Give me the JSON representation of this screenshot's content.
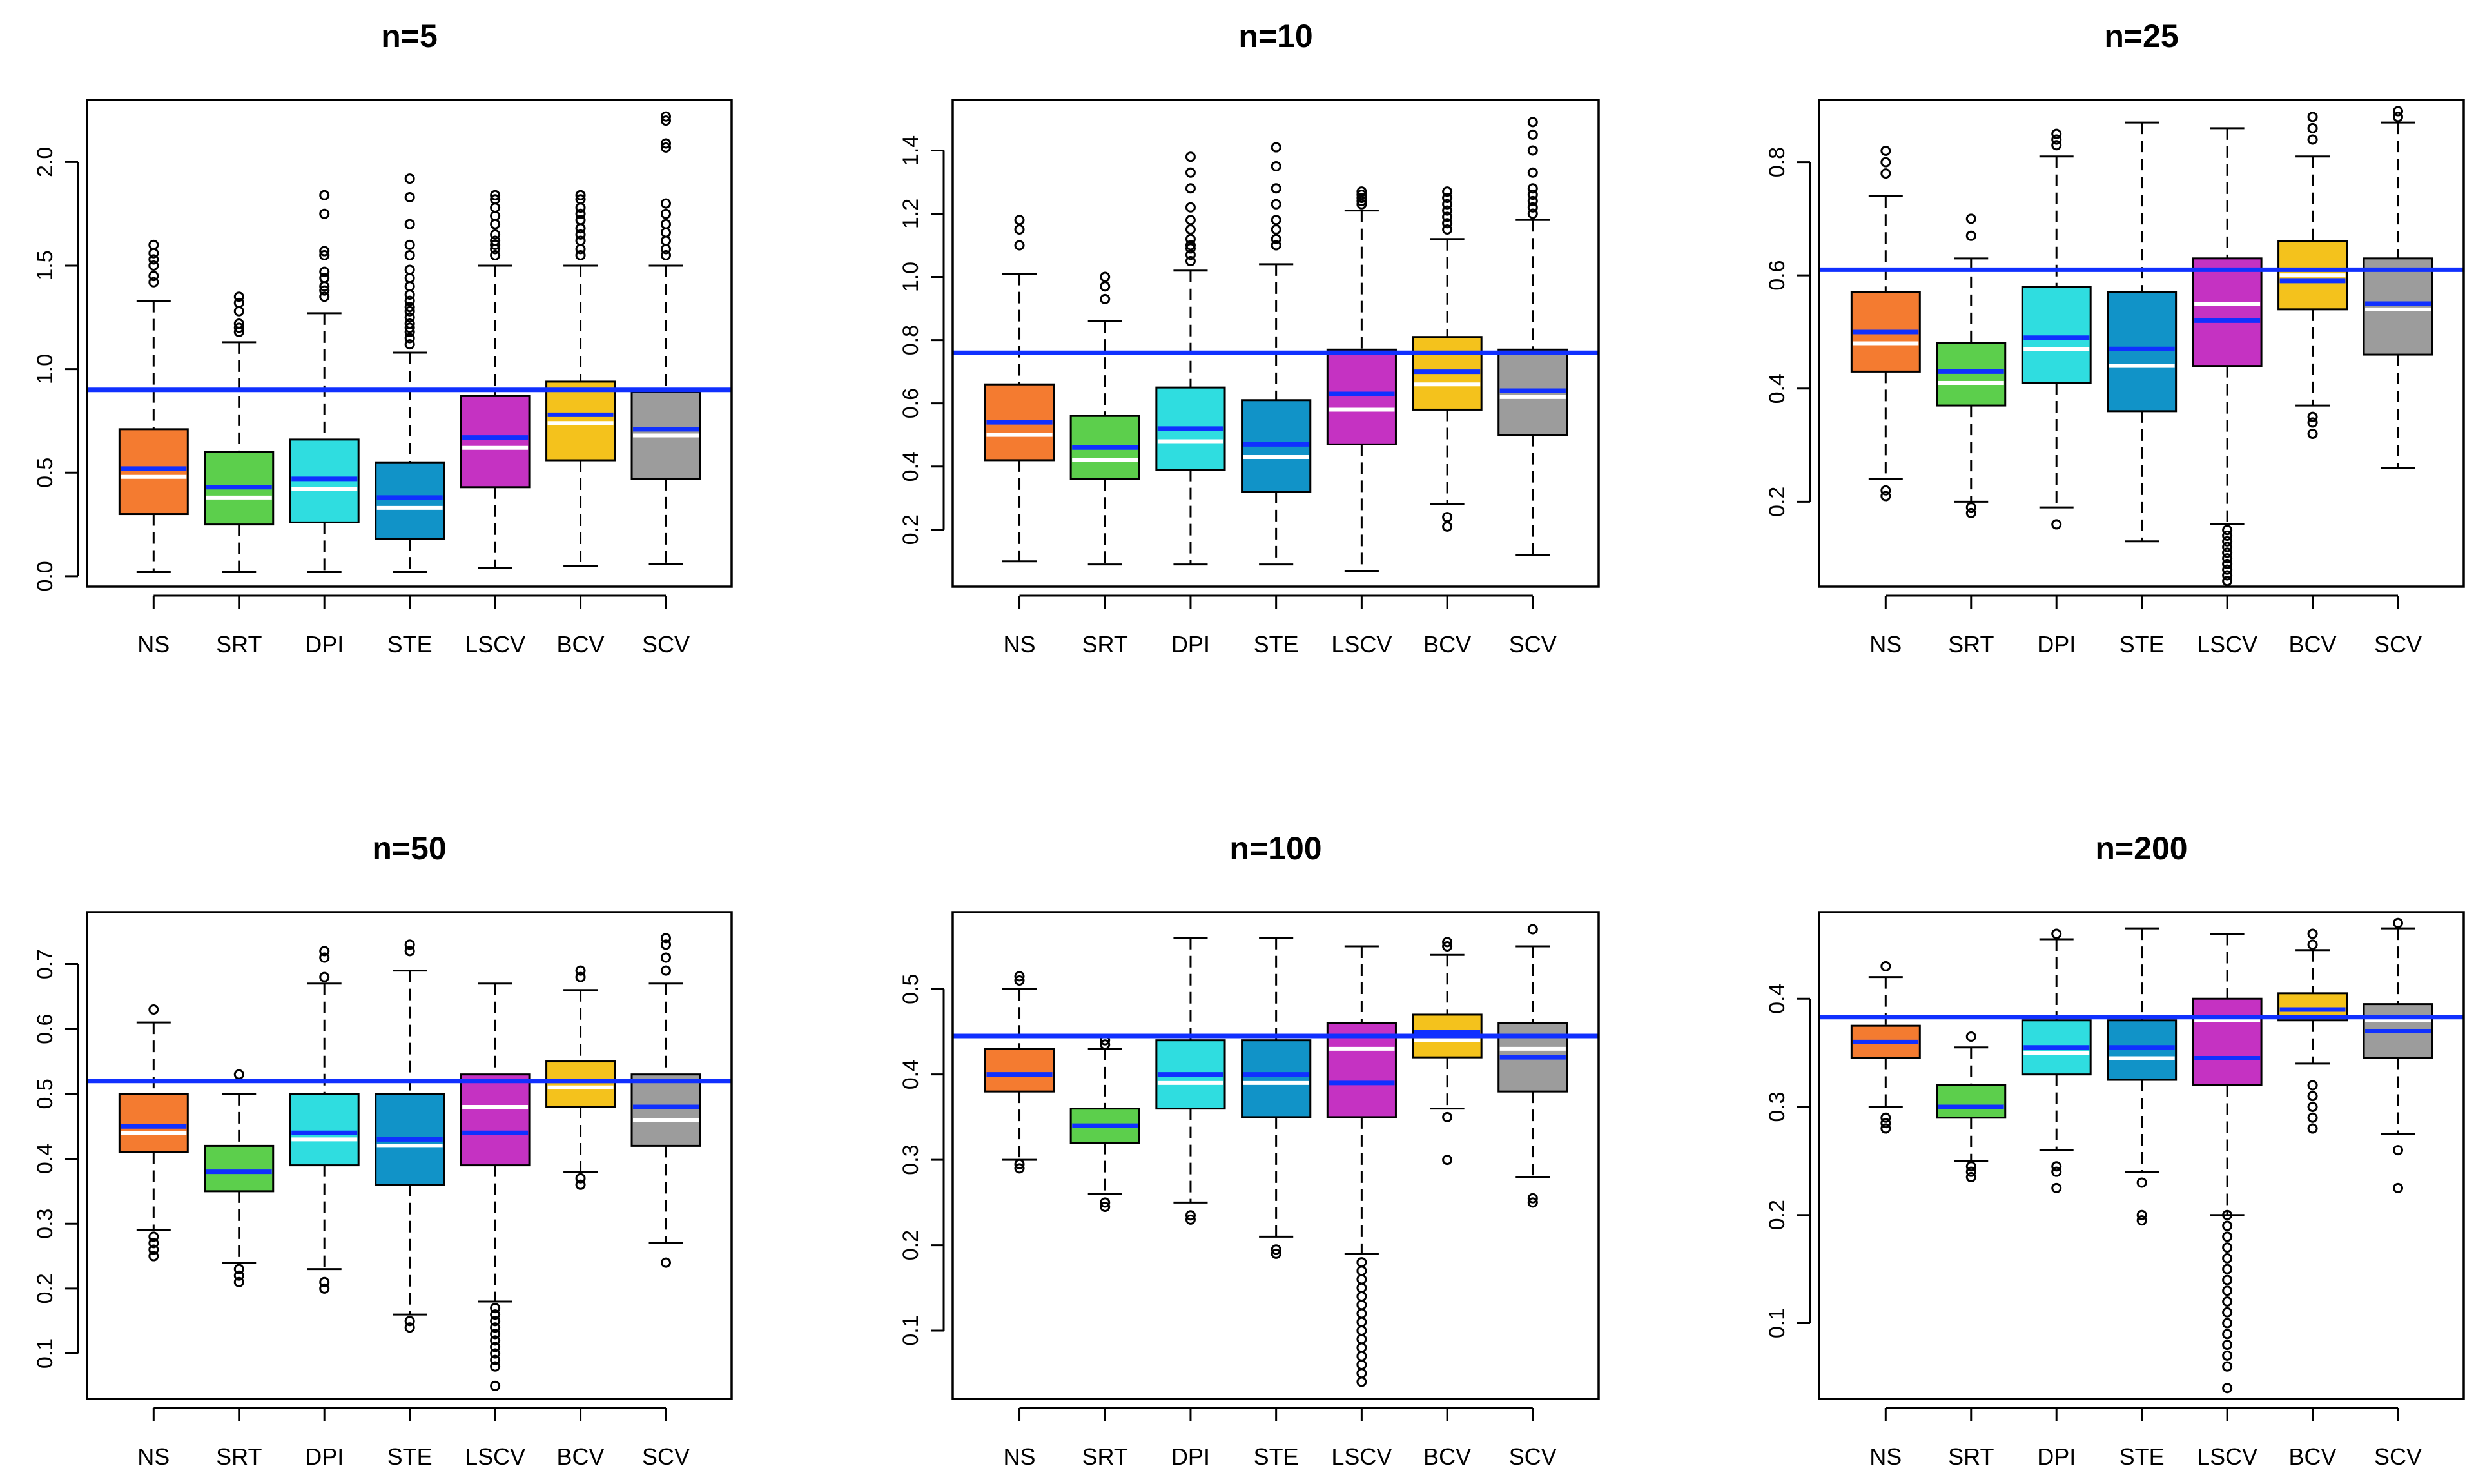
{
  "colors": {
    "NS": "#f47b30",
    "SRT": "#5ccf4c",
    "DPI": "#2fdde0",
    "STE": "#1193c8",
    "LSCV": "#c532c2",
    "BCV": "#f4c21c",
    "SCV": "#9c9c9c",
    "reference": "#1030ff",
    "mean_line": "#1030ff",
    "median_line": "#ffffff"
  },
  "chart_data": [
    {
      "type": "boxplot",
      "title": "n=5",
      "categories": [
        "NS",
        "SRT",
        "DPI",
        "STE",
        "LSCV",
        "BCV",
        "SCV"
      ],
      "ylim": [
        -0.05,
        2.3
      ],
      "yticks": [
        0.0,
        0.5,
        1.0,
        1.5,
        2.0
      ],
      "ytick_labels": [
        "0.0",
        "0.5",
        "1.0",
        "1.5",
        "2.0"
      ],
      "reference": 0.9,
      "boxes": [
        {
          "lw": 0.02,
          "q1": 0.3,
          "median": 0.48,
          "mean": 0.52,
          "q3": 0.71,
          "uw": 1.33,
          "outliers": [
            1.42,
            1.45,
            1.5,
            1.53,
            1.56,
            1.6
          ]
        },
        {
          "lw": 0.02,
          "q1": 0.25,
          "median": 0.38,
          "mean": 0.43,
          "q3": 0.6,
          "uw": 1.13,
          "outliers": [
            1.18,
            1.2,
            1.22,
            1.28,
            1.32,
            1.35
          ]
        },
        {
          "lw": 0.02,
          "q1": 0.26,
          "median": 0.42,
          "mean": 0.47,
          "q3": 0.66,
          "uw": 1.27,
          "outliers": [
            1.35,
            1.38,
            1.4,
            1.44,
            1.47,
            1.55,
            1.57,
            1.75,
            1.84
          ]
        },
        {
          "lw": 0.02,
          "q1": 0.18,
          "median": 0.33,
          "mean": 0.38,
          "q3": 0.55,
          "uw": 1.08,
          "outliers": [
            1.12,
            1.15,
            1.18,
            1.2,
            1.22,
            1.25,
            1.28,
            1.3,
            1.33,
            1.36,
            1.4,
            1.44,
            1.48,
            1.55,
            1.6,
            1.7,
            1.83,
            1.92
          ]
        },
        {
          "lw": 0.04,
          "q1": 0.43,
          "median": 0.62,
          "mean": 0.67,
          "q3": 0.87,
          "uw": 1.5,
          "outliers": [
            1.55,
            1.58,
            1.6,
            1.62,
            1.65,
            1.7,
            1.74,
            1.78,
            1.82,
            1.84
          ]
        },
        {
          "lw": 0.05,
          "q1": 0.56,
          "median": 0.74,
          "mean": 0.78,
          "q3": 0.94,
          "uw": 1.5,
          "outliers": [
            1.55,
            1.58,
            1.62,
            1.65,
            1.68,
            1.72,
            1.75,
            1.78,
            1.82,
            1.84
          ]
        },
        {
          "lw": 0.06,
          "q1": 0.47,
          "median": 0.68,
          "mean": 0.71,
          "q3": 0.89,
          "uw": 1.5,
          "outliers": [
            1.55,
            1.58,
            1.62,
            1.66,
            1.7,
            1.75,
            1.8,
            2.07,
            2.09,
            2.2,
            2.22
          ]
        }
      ]
    },
    {
      "type": "boxplot",
      "title": "n=10",
      "categories": [
        "NS",
        "SRT",
        "DPI",
        "STE",
        "LSCV",
        "BCV",
        "SCV"
      ],
      "ylim": [
        0.02,
        1.56
      ],
      "yticks": [
        0.2,
        0.4,
        0.6,
        0.8,
        1.0,
        1.2,
        1.4
      ],
      "ytick_labels": [
        "0.2",
        "0.4",
        "0.6",
        "0.8",
        "1.0",
        "1.2",
        "1.4"
      ],
      "reference": 0.76,
      "boxes": [
        {
          "lw": 0.1,
          "q1": 0.42,
          "median": 0.5,
          "mean": 0.54,
          "q3": 0.66,
          "uw": 1.01,
          "outliers": [
            1.1,
            1.15,
            1.18
          ]
        },
        {
          "lw": 0.09,
          "q1": 0.36,
          "median": 0.42,
          "mean": 0.46,
          "q3": 0.56,
          "uw": 0.86,
          "outliers": [
            0.93,
            0.97,
            1.0
          ]
        },
        {
          "lw": 0.09,
          "q1": 0.39,
          "median": 0.48,
          "mean": 0.52,
          "q3": 0.65,
          "uw": 1.02,
          "outliers": [
            1.05,
            1.07,
            1.09,
            1.1,
            1.12,
            1.15,
            1.18,
            1.22,
            1.28,
            1.33,
            1.38
          ]
        },
        {
          "lw": 0.09,
          "q1": 0.32,
          "median": 0.43,
          "mean": 0.47,
          "q3": 0.61,
          "uw": 1.04,
          "outliers": [
            1.1,
            1.12,
            1.15,
            1.18,
            1.23,
            1.28,
            1.35,
            1.41
          ]
        },
        {
          "lw": 0.07,
          "q1": 0.47,
          "median": 0.58,
          "mean": 0.63,
          "q3": 0.77,
          "uw": 1.21,
          "outliers": [
            1.23,
            1.24,
            1.25,
            1.26,
            1.27
          ]
        },
        {
          "lw": 0.28,
          "q1": 0.58,
          "median": 0.66,
          "mean": 0.7,
          "q3": 0.81,
          "uw": 1.12,
          "outliers": [
            0.21,
            0.24,
            1.15,
            1.17,
            1.19,
            1.21,
            1.23,
            1.25,
            1.27
          ]
        },
        {
          "lw": 0.12,
          "q1": 0.5,
          "median": 0.62,
          "mean": 0.64,
          "q3": 0.77,
          "uw": 1.18,
          "outliers": [
            1.2,
            1.22,
            1.24,
            1.26,
            1.28,
            1.33,
            1.4,
            1.45,
            1.49
          ]
        }
      ]
    },
    {
      "type": "boxplot",
      "title": "n=25",
      "categories": [
        "NS",
        "SRT",
        "DPI",
        "STE",
        "LSCV",
        "BCV",
        "SCV"
      ],
      "ylim": [
        0.05,
        0.91
      ],
      "yticks": [
        0.2,
        0.4,
        0.6,
        0.8
      ],
      "ytick_labels": [
        "0.2",
        "0.4",
        "0.6",
        "0.8"
      ],
      "reference": 0.61,
      "boxes": [
        {
          "lw": 0.24,
          "q1": 0.43,
          "median": 0.48,
          "mean": 0.5,
          "q3": 0.57,
          "uw": 0.74,
          "outliers": [
            0.21,
            0.22,
            0.78,
            0.8,
            0.82
          ]
        },
        {
          "lw": 0.2,
          "q1": 0.37,
          "median": 0.41,
          "mean": 0.43,
          "q3": 0.48,
          "uw": 0.63,
          "outliers": [
            0.18,
            0.19,
            0.67,
            0.7
          ]
        },
        {
          "lw": 0.19,
          "q1": 0.41,
          "median": 0.47,
          "mean": 0.49,
          "q3": 0.58,
          "uw": 0.81,
          "outliers": [
            0.16,
            0.83,
            0.84,
            0.85
          ]
        },
        {
          "lw": 0.13,
          "q1": 0.36,
          "median": 0.44,
          "mean": 0.47,
          "q3": 0.57,
          "uw": 0.87,
          "outliers": []
        },
        {
          "lw": 0.16,
          "q1": 0.44,
          "median": 0.55,
          "mean": 0.52,
          "q3": 0.63,
          "uw": 0.86,
          "outliers": [
            0.06,
            0.07,
            0.08,
            0.09,
            0.1,
            0.11,
            0.12,
            0.13,
            0.14,
            0.15
          ]
        },
        {
          "lw": 0.37,
          "q1": 0.54,
          "median": 0.6,
          "mean": 0.59,
          "q3": 0.66,
          "uw": 0.81,
          "outliers": [
            0.32,
            0.34,
            0.35,
            0.84,
            0.86,
            0.88
          ]
        },
        {
          "lw": 0.26,
          "q1": 0.46,
          "median": 0.54,
          "mean": 0.55,
          "q3": 0.63,
          "uw": 0.87,
          "outliers": [
            0.88,
            0.89
          ]
        }
      ]
    },
    {
      "type": "boxplot",
      "title": "n=50",
      "categories": [
        "NS",
        "SRT",
        "DPI",
        "STE",
        "LSCV",
        "BCV",
        "SCV"
      ],
      "ylim": [
        0.03,
        0.78
      ],
      "yticks": [
        0.1,
        0.2,
        0.3,
        0.4,
        0.5,
        0.6,
        0.7
      ],
      "ytick_labels": [
        "0.1",
        "0.2",
        "0.3",
        "0.4",
        "0.5",
        "0.6",
        "0.7"
      ],
      "reference": 0.52,
      "boxes": [
        {
          "lw": 0.29,
          "q1": 0.41,
          "median": 0.44,
          "mean": 0.45,
          "q3": 0.5,
          "uw": 0.61,
          "outliers": [
            0.25,
            0.26,
            0.27,
            0.28,
            0.63
          ]
        },
        {
          "lw": 0.24,
          "q1": 0.35,
          "median": 0.38,
          "mean": 0.38,
          "q3": 0.42,
          "uw": 0.5,
          "outliers": [
            0.21,
            0.22,
            0.23,
            0.53
          ]
        },
        {
          "lw": 0.23,
          "q1": 0.39,
          "median": 0.43,
          "mean": 0.44,
          "q3": 0.5,
          "uw": 0.67,
          "outliers": [
            0.2,
            0.21,
            0.68,
            0.71,
            0.72
          ]
        },
        {
          "lw": 0.16,
          "q1": 0.36,
          "median": 0.42,
          "mean": 0.43,
          "q3": 0.5,
          "uw": 0.69,
          "outliers": [
            0.14,
            0.15,
            0.72,
            0.73
          ]
        },
        {
          "lw": 0.18,
          "q1": 0.39,
          "median": 0.48,
          "mean": 0.44,
          "q3": 0.53,
          "uw": 0.67,
          "outliers": [
            0.05,
            0.08,
            0.09,
            0.1,
            0.11,
            0.12,
            0.13,
            0.14,
            0.15,
            0.16,
            0.17
          ]
        },
        {
          "lw": 0.38,
          "q1": 0.48,
          "median": 0.51,
          "mean": 0.52,
          "q3": 0.55,
          "uw": 0.66,
          "outliers": [
            0.36,
            0.37,
            0.68,
            0.69
          ]
        },
        {
          "lw": 0.27,
          "q1": 0.42,
          "median": 0.46,
          "mean": 0.48,
          "q3": 0.53,
          "uw": 0.67,
          "outliers": [
            0.24,
            0.69,
            0.71,
            0.73,
            0.74
          ]
        }
      ]
    },
    {
      "type": "boxplot",
      "title": "n=100",
      "categories": [
        "NS",
        "SRT",
        "DPI",
        "STE",
        "LSCV",
        "BCV",
        "SCV"
      ],
      "ylim": [
        0.02,
        0.59
      ],
      "yticks": [
        0.1,
        0.2,
        0.3,
        0.4,
        0.5
      ],
      "ytick_labels": [
        "0.1",
        "0.2",
        "0.3",
        "0.4",
        "0.5"
      ],
      "reference": 0.445,
      "boxes": [
        {
          "lw": 0.3,
          "q1": 0.38,
          "median": 0.4,
          "mean": 0.4,
          "q3": 0.43,
          "uw": 0.5,
          "outliers": [
            0.29,
            0.295,
            0.51,
            0.515
          ]
        },
        {
          "lw": 0.26,
          "q1": 0.32,
          "median": 0.34,
          "mean": 0.34,
          "q3": 0.36,
          "uw": 0.43,
          "outliers": [
            0.245,
            0.25,
            0.435,
            0.44
          ]
        },
        {
          "lw": 0.25,
          "q1": 0.36,
          "median": 0.39,
          "mean": 0.4,
          "q3": 0.44,
          "uw": 0.56,
          "outliers": [
            0.23,
            0.235
          ]
        },
        {
          "lw": 0.21,
          "q1": 0.35,
          "median": 0.39,
          "mean": 0.4,
          "q3": 0.44,
          "uw": 0.56,
          "outliers": [
            0.19,
            0.195
          ]
        },
        {
          "lw": 0.19,
          "q1": 0.35,
          "median": 0.43,
          "mean": 0.39,
          "q3": 0.46,
          "uw": 0.55,
          "outliers": [
            0.04,
            0.05,
            0.06,
            0.07,
            0.08,
            0.09,
            0.1,
            0.11,
            0.12,
            0.13,
            0.14,
            0.15,
            0.16,
            0.17,
            0.18
          ]
        },
        {
          "lw": 0.36,
          "q1": 0.42,
          "median": 0.44,
          "mean": 0.45,
          "q3": 0.47,
          "uw": 0.54,
          "outliers": [
            0.3,
            0.35,
            0.55,
            0.555
          ]
        },
        {
          "lw": 0.28,
          "q1": 0.38,
          "median": 0.43,
          "mean": 0.42,
          "q3": 0.46,
          "uw": 0.55,
          "outliers": [
            0.25,
            0.255,
            0.57
          ]
        }
      ]
    },
    {
      "type": "boxplot",
      "title": "n=200",
      "categories": [
        "NS",
        "SRT",
        "DPI",
        "STE",
        "LSCV",
        "BCV",
        "SCV"
      ],
      "ylim": [
        0.03,
        0.48
      ],
      "yticks": [
        0.1,
        0.2,
        0.3,
        0.4
      ],
      "ytick_labels": [
        "0.1",
        "0.2",
        "0.3",
        "0.4"
      ],
      "reference": 0.383,
      "boxes": [
        {
          "lw": 0.3,
          "q1": 0.345,
          "median": 0.36,
          "mean": 0.36,
          "q3": 0.375,
          "uw": 0.42,
          "outliers": [
            0.28,
            0.285,
            0.29,
            0.43
          ]
        },
        {
          "lw": 0.25,
          "q1": 0.29,
          "median": 0.3,
          "mean": 0.3,
          "q3": 0.32,
          "uw": 0.355,
          "outliers": [
            0.235,
            0.24,
            0.245,
            0.365
          ]
        },
        {
          "lw": 0.26,
          "q1": 0.33,
          "median": 0.35,
          "mean": 0.355,
          "q3": 0.38,
          "uw": 0.455,
          "outliers": [
            0.225,
            0.24,
            0.245,
            0.46
          ]
        },
        {
          "lw": 0.24,
          "q1": 0.325,
          "median": 0.345,
          "mean": 0.355,
          "q3": 0.38,
          "uw": 0.465,
          "outliers": [
            0.195,
            0.2,
            0.23
          ]
        },
        {
          "lw": 0.2,
          "q1": 0.32,
          "median": 0.38,
          "mean": 0.345,
          "q3": 0.4,
          "uw": 0.46,
          "outliers": [
            0.04,
            0.06,
            0.07,
            0.08,
            0.09,
            0.1,
            0.11,
            0.12,
            0.13,
            0.14,
            0.15,
            0.16,
            0.17,
            0.18,
            0.19,
            0.2
          ]
        },
        {
          "lw": 0.34,
          "q1": 0.38,
          "median": 0.39,
          "mean": 0.39,
          "q3": 0.405,
          "uw": 0.445,
          "outliers": [
            0.28,
            0.29,
            0.3,
            0.31,
            0.32,
            0.45,
            0.46
          ]
        },
        {
          "lw": 0.275,
          "q1": 0.345,
          "median": 0.38,
          "mean": 0.37,
          "q3": 0.395,
          "uw": 0.465,
          "outliers": [
            0.225,
            0.26,
            0.47
          ]
        }
      ]
    }
  ]
}
